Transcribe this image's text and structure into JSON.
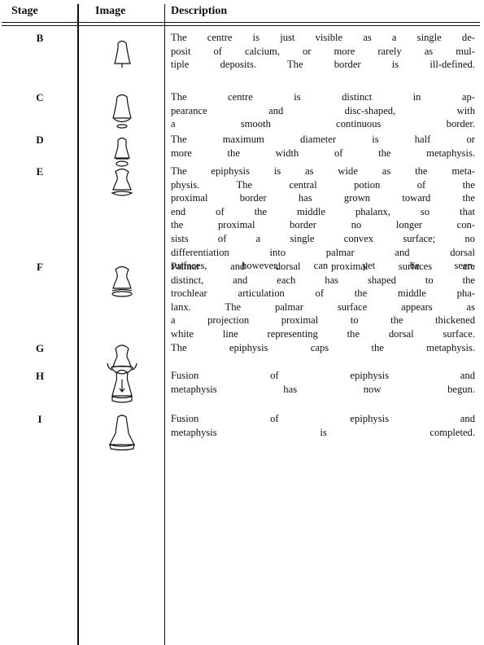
{
  "table": {
    "header": [
      "Stage",
      "Image",
      "Description"
    ],
    "rows": [
      {
        "stage": "B",
        "description": [
          "The centre is just visible as a single de-",
          "posit of calcium, or more rarely as mul-",
          "tiple deposits. The border is ill-defined."
        ]
      },
      {
        "stage": "C",
        "description": [
          "The centre is distinct in ap-",
          "pearance and disc-shaped, with",
          "a smooth continuous border."
        ]
      },
      {
        "stage": "D",
        "description": [
          "The maximum diameter is half or",
          "more the width of the metaphysis."
        ]
      },
      {
        "stage": "E",
        "description": [
          "The epiphysis is as wide as the meta-",
          "physis. The central potion of the",
          "proximal border has grown toward the",
          "end of the middle phalanx, so that",
          "the proximal border no longer con-",
          "sists of a single convex surface; no",
          "differentiation into palmar and dorsal",
          "surfaces, however, can yet be seen."
        ]
      },
      {
        "stage": "F",
        "description": [
          "Palmar and dorsal proximal surfaces are",
          "distinct, and each has shaped to the",
          "trochlear articulation of the middle pha-",
          "lanx. The palmar surface appears as",
          "a projection proximal to the thickened",
          "white line representing the dorsal surface."
        ]
      },
      {
        "stage": "G",
        "description": [
          "The epiphysis caps the metaphysis."
        ]
      },
      {
        "stage": "H",
        "description": [
          "Fusion of epiphysis and",
          "metaphysis has now begun."
        ]
      },
      {
        "stage": "I",
        "description": [
          "Fusion of epiphysis and",
          "metaphysis is completed."
        ]
      }
    ]
  }
}
